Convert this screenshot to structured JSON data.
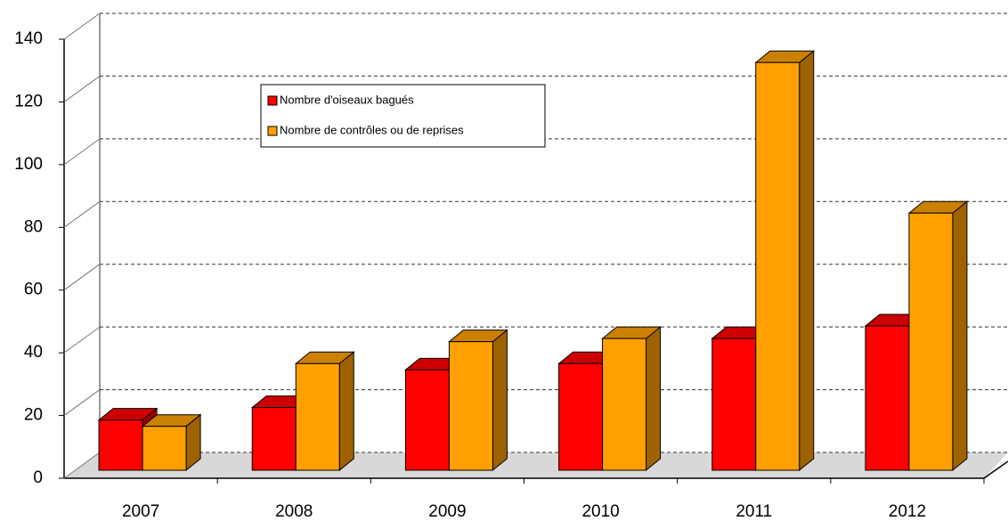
{
  "chart_data": {
    "type": "bar3d",
    "categories": [
      "2007",
      "2008",
      "2009",
      "2010",
      "2011",
      "2012"
    ],
    "series": [
      {
        "name": "Nombre d'oiseaux bagués",
        "color": "#ff0000",
        "values": [
          16,
          20,
          32,
          34,
          42,
          46
        ]
      },
      {
        "name": "Nombre de contrôles ou de reprises",
        "color": "#ffa000",
        "values": [
          14,
          34,
          41,
          42,
          130,
          82
        ]
      }
    ],
    "ylim": [
      0,
      140
    ],
    "yticks": [
      0,
      20,
      40,
      60,
      80,
      100,
      120,
      140
    ],
    "grid": true,
    "legend": "top-left"
  }
}
